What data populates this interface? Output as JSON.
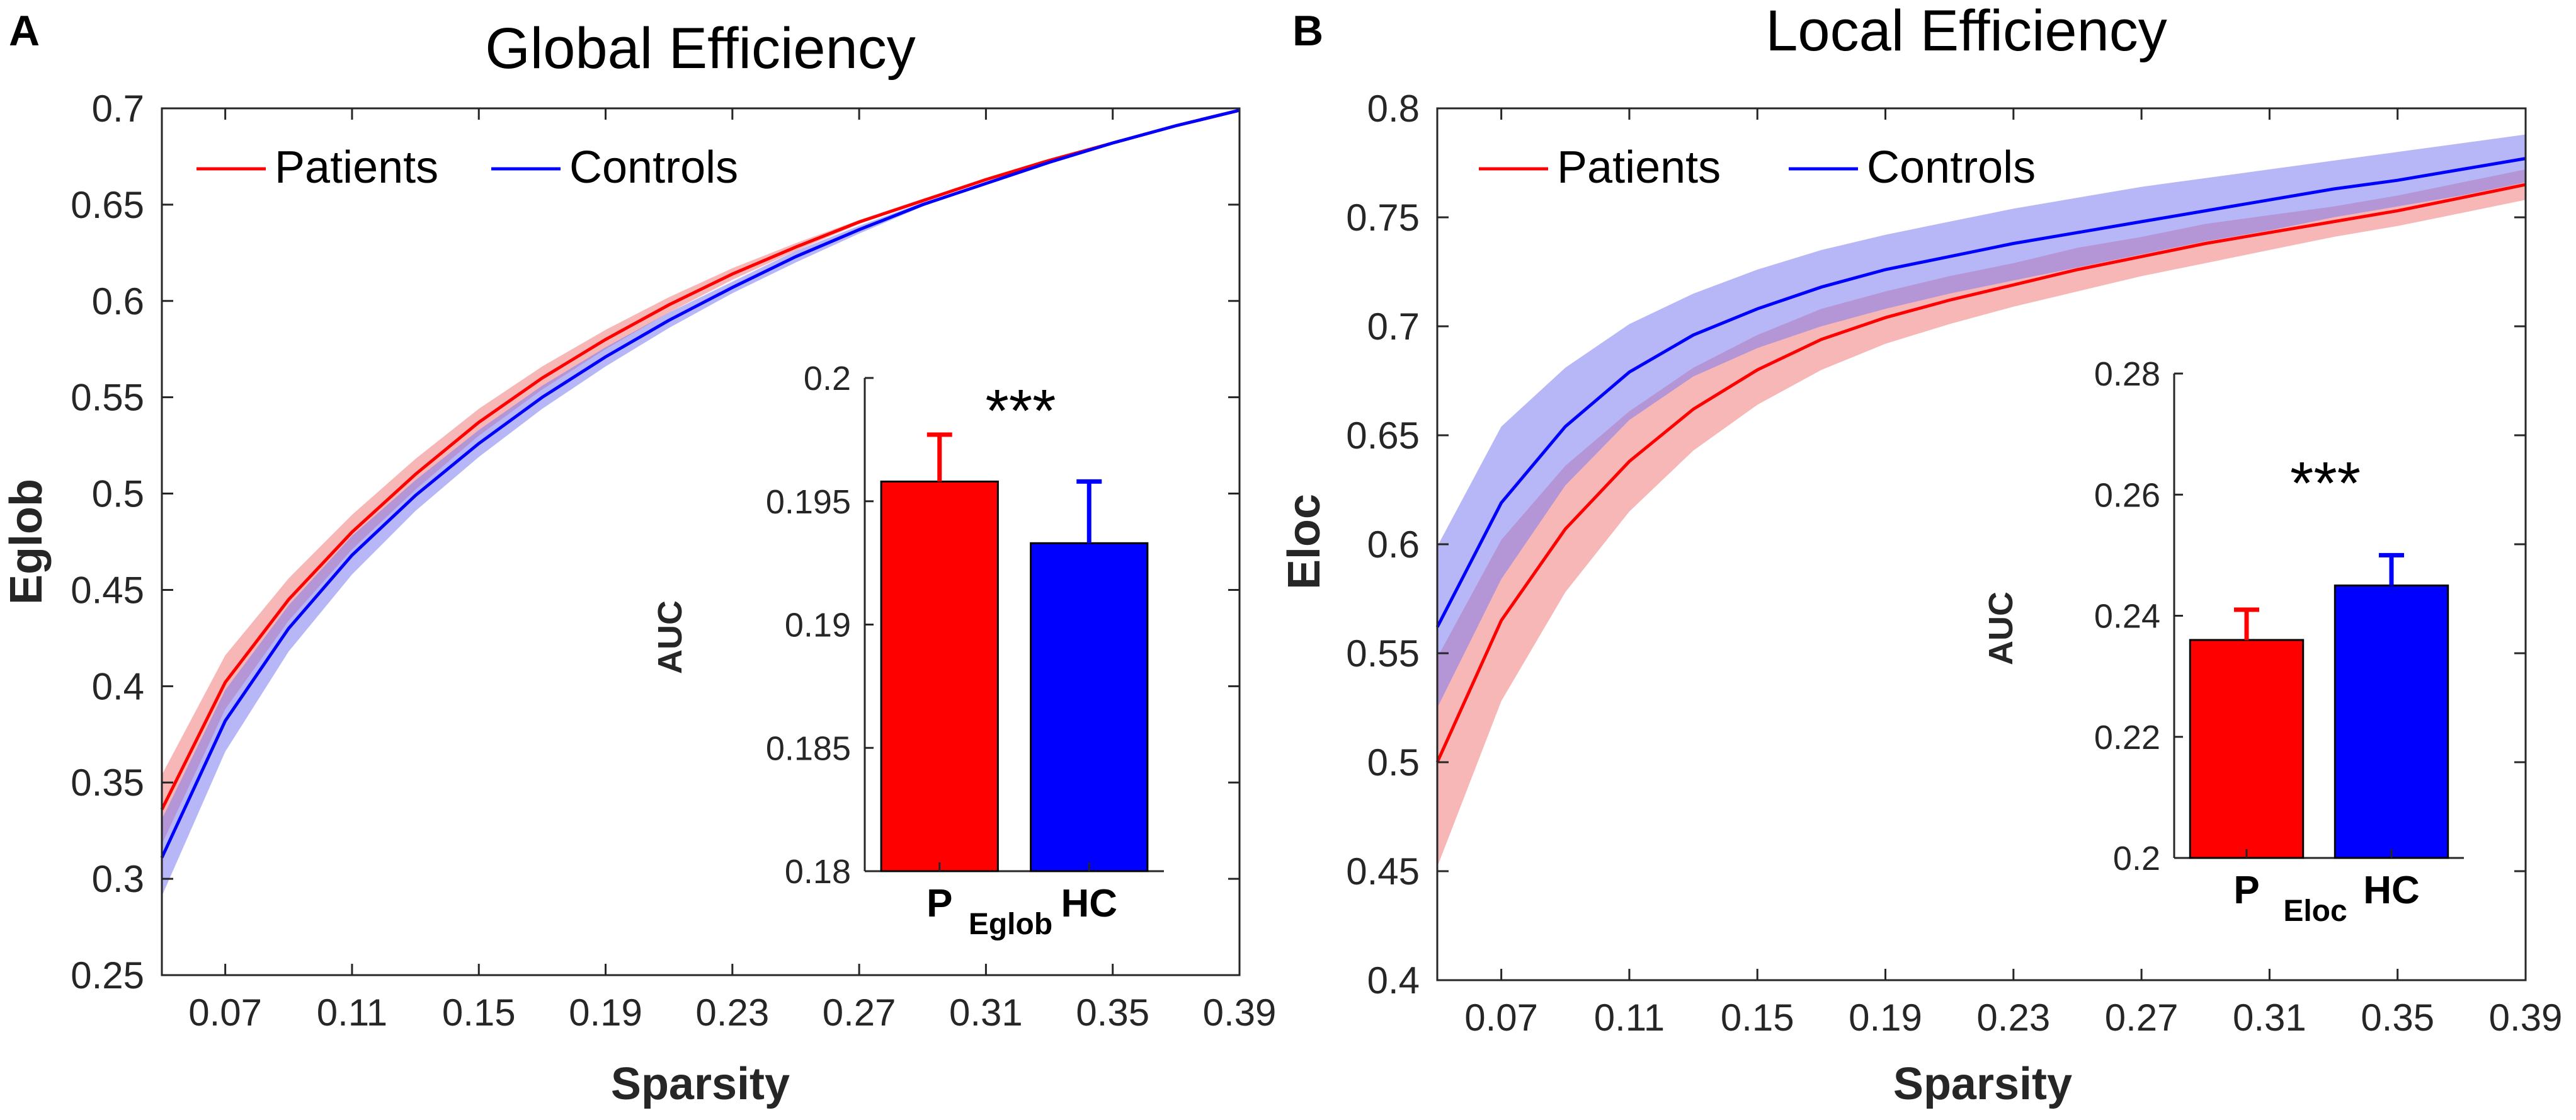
{
  "chart_data": [
    {
      "type": "line",
      "panel": "A",
      "title": "Global Efficiency",
      "xlabel": "Sparsity",
      "ylabel": "Eglob",
      "xlim": [
        0.05,
        0.39
      ],
      "ylim": [
        0.25,
        0.7
      ],
      "xticks": [
        "0.07",
        "0.11",
        "0.15",
        "0.19",
        "0.23",
        "0.27",
        "0.31",
        "0.35",
        "0.39"
      ],
      "yticks": [
        "0.25",
        "0.3",
        "0.35",
        "0.4",
        "0.45",
        "0.5",
        "0.55",
        "0.6",
        "0.65",
        "0.7"
      ],
      "legend": [
        "Patients",
        "Controls"
      ],
      "legend_position": "top-left",
      "x": [
        0.05,
        0.07,
        0.09,
        0.11,
        0.13,
        0.15,
        0.17,
        0.19,
        0.21,
        0.23,
        0.25,
        0.27,
        0.29,
        0.31,
        0.33,
        0.35,
        0.37,
        0.39
      ],
      "series": [
        {
          "name": "Patients",
          "color": "#ff0000",
          "band_color": "#f27c7c",
          "values": [
            0.336,
            0.402,
            0.445,
            0.48,
            0.51,
            0.537,
            0.56,
            0.58,
            0.598,
            0.614,
            0.628,
            0.641,
            0.652,
            0.663,
            0.673,
            0.682,
            0.691,
            0.699
          ],
          "lower": [
            0.318,
            0.388,
            0.434,
            0.471,
            0.502,
            0.53,
            0.554,
            0.575,
            0.594,
            0.611,
            0.626,
            0.64,
            0.652,
            0.663,
            0.673,
            0.682,
            0.691,
            0.699
          ],
          "upper": [
            0.354,
            0.416,
            0.456,
            0.489,
            0.518,
            0.544,
            0.566,
            0.585,
            0.602,
            0.617,
            0.63,
            0.642,
            0.653,
            0.663,
            0.673,
            0.682,
            0.691,
            0.699
          ]
        },
        {
          "name": "Controls",
          "color": "#0000ff",
          "band_color": "#7c7cf2",
          "values": [
            0.311,
            0.382,
            0.43,
            0.468,
            0.499,
            0.526,
            0.55,
            0.571,
            0.59,
            0.607,
            0.623,
            0.637,
            0.65,
            0.661,
            0.672,
            0.682,
            0.691,
            0.699
          ],
          "lower": [
            0.291,
            0.366,
            0.418,
            0.458,
            0.491,
            0.519,
            0.544,
            0.566,
            0.586,
            0.604,
            0.62,
            0.635,
            0.649,
            0.661,
            0.672,
            0.682,
            0.691,
            0.699
          ],
          "upper": [
            0.331,
            0.398,
            0.442,
            0.478,
            0.507,
            0.533,
            0.556,
            0.576,
            0.594,
            0.61,
            0.626,
            0.639,
            0.651,
            0.661,
            0.672,
            0.682,
            0.691,
            0.699
          ]
        }
      ],
      "inset": {
        "type": "bar",
        "ylabel": "AUC",
        "xlabel": "Eglob",
        "categories": [
          "P",
          "HC"
        ],
        "values": [
          0.1958,
          0.1933
        ],
        "errors": [
          0.0019,
          0.0025
        ],
        "colors": [
          "#ff0000",
          "#0000ff"
        ],
        "ylim": [
          0.18,
          0.2
        ],
        "yticks": [
          "0.18",
          "0.185",
          "0.19",
          "0.195",
          "0.2"
        ],
        "annotation": "***"
      }
    },
    {
      "type": "line",
      "panel": "B",
      "title": "Local Efficiency",
      "xlabel": "Sparsity",
      "ylabel": "Eloc",
      "xlim": [
        0.05,
        0.39
      ],
      "ylim": [
        0.4,
        0.8
      ],
      "xticks": [
        "0.07",
        "0.11",
        "0.15",
        "0.19",
        "0.23",
        "0.27",
        "0.31",
        "0.35",
        "0.39"
      ],
      "yticks": [
        "0.4",
        "0.45",
        "0.5",
        "0.55",
        "0.6",
        "0.65",
        "0.7",
        "0.75",
        "0.8"
      ],
      "legend": [
        "Patients",
        "Controls"
      ],
      "legend_position": "top-left",
      "x": [
        0.05,
        0.07,
        0.09,
        0.11,
        0.13,
        0.15,
        0.17,
        0.19,
        0.21,
        0.23,
        0.25,
        0.27,
        0.29,
        0.31,
        0.33,
        0.35,
        0.37,
        0.39
      ],
      "series": [
        {
          "name": "Patients",
          "color": "#ff0000",
          "band_color": "#f27c7c",
          "values": [
            0.5,
            0.565,
            0.607,
            0.638,
            0.662,
            0.68,
            0.694,
            0.704,
            0.712,
            0.719,
            0.726,
            0.732,
            0.738,
            0.743,
            0.748,
            0.753,
            0.759,
            0.765
          ],
          "lower": [
            0.452,
            0.528,
            0.578,
            0.615,
            0.643,
            0.664,
            0.68,
            0.692,
            0.701,
            0.709,
            0.716,
            0.723,
            0.729,
            0.735,
            0.741,
            0.746,
            0.752,
            0.758
          ],
          "upper": [
            0.548,
            0.602,
            0.636,
            0.661,
            0.681,
            0.696,
            0.708,
            0.716,
            0.723,
            0.729,
            0.736,
            0.741,
            0.747,
            0.751,
            0.755,
            0.76,
            0.766,
            0.772
          ]
        },
        {
          "name": "Controls",
          "color": "#0000ff",
          "band_color": "#7c7cf2",
          "values": [
            0.562,
            0.619,
            0.654,
            0.679,
            0.696,
            0.708,
            0.718,
            0.726,
            0.732,
            0.738,
            0.743,
            0.748,
            0.753,
            0.758,
            0.763,
            0.767,
            0.772,
            0.777
          ],
          "lower": [
            0.525,
            0.584,
            0.627,
            0.657,
            0.677,
            0.69,
            0.7,
            0.708,
            0.715,
            0.721,
            0.727,
            0.733,
            0.739,
            0.744,
            0.75,
            0.755,
            0.76,
            0.766
          ],
          "upper": [
            0.599,
            0.654,
            0.681,
            0.701,
            0.715,
            0.726,
            0.735,
            0.742,
            0.748,
            0.754,
            0.759,
            0.764,
            0.768,
            0.772,
            0.776,
            0.78,
            0.784,
            0.788
          ]
        }
      ],
      "inset": {
        "type": "bar",
        "ylabel": "AUC",
        "xlabel": "Eloc",
        "categories": [
          "P",
          "HC"
        ],
        "values": [
          0.236,
          0.245
        ],
        "errors": [
          0.005,
          0.005
        ],
        "colors": [
          "#ff0000",
          "#0000ff"
        ],
        "ylim": [
          0.2,
          0.28
        ],
        "yticks": [
          "0.2",
          "0.22",
          "0.24",
          "0.26",
          "0.28"
        ],
        "annotation": "***"
      }
    }
  ]
}
